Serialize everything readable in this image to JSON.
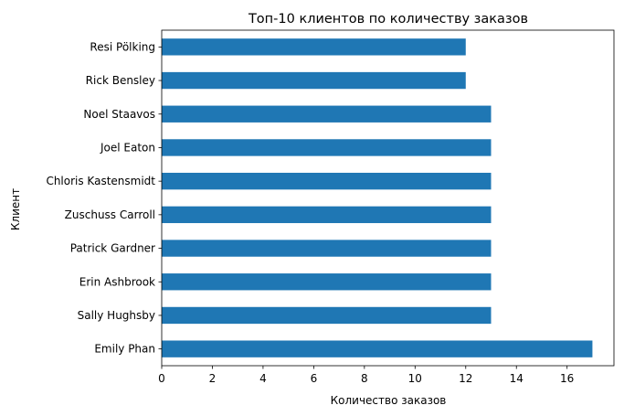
{
  "chart_data": {
    "type": "bar",
    "orientation": "horizontal",
    "title": "Топ-10 клиентов по количеству заказов",
    "xlabel": "Количество заказов",
    "ylabel": "Клиент",
    "categories": [
      "Emily Phan",
      "Sally Hughsby",
      "Erin Ashbrook",
      "Patrick Gardner",
      "Zuschuss Carroll",
      "Chloris Kastensmidt",
      "Joel Eaton",
      "Noel Staavos",
      "Rick Bensley",
      "Resi Pölking"
    ],
    "values": [
      17,
      13,
      13,
      13,
      13,
      13,
      13,
      13,
      12,
      12
    ],
    "xlim": [
      0,
      17.85
    ],
    "xticks": [
      0,
      2,
      4,
      6,
      8,
      10,
      12,
      14,
      16
    ],
    "grid": false,
    "legend": "none",
    "bar_color": "#1f77b4"
  }
}
